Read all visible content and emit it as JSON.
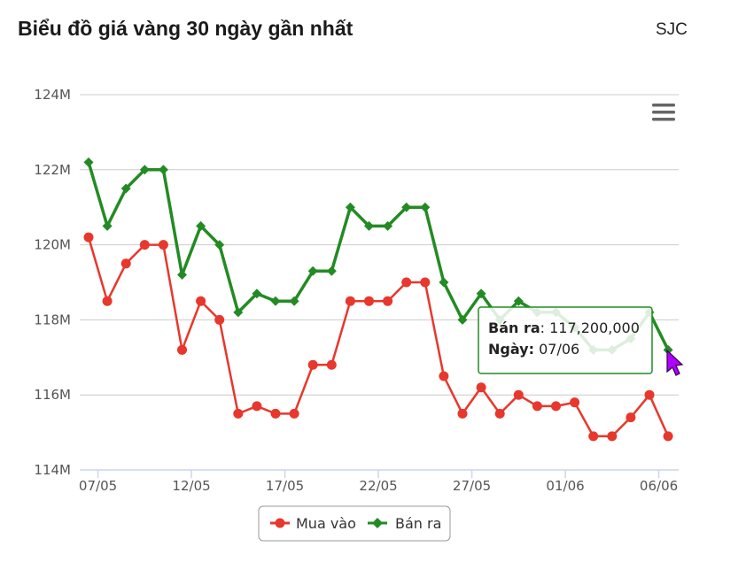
{
  "header": {
    "title": "Biểu đồ giá vàng 30 ngày gần nhất",
    "source": "SJC"
  },
  "colors": {
    "mua_vao": "#e8372c",
    "ban_ra": "#238b23",
    "grid": "#cccccc",
    "axis": "#ccd6eb",
    "cursor": "#b000ff"
  },
  "icons": {
    "menu": "hamburger-menu-icon",
    "cursor": "mouse-pointer-icon"
  },
  "tooltip": {
    "label_price": "Bán ra",
    "value_price": "117,200,000",
    "label_date": "Ngày:",
    "value_date": "07/06"
  },
  "chart_data": {
    "type": "line",
    "title": "Biểu đồ giá vàng 30 ngày gần nhất",
    "xlabel": "",
    "ylabel": "",
    "ylim": [
      114,
      124
    ],
    "y_unit": "M",
    "y_ticks": [
      "114M",
      "116M",
      "118M",
      "120M",
      "122M",
      "124M"
    ],
    "x_tick_labels": [
      "07/05",
      "12/05",
      "17/05",
      "22/05",
      "27/05",
      "01/06",
      "06/06"
    ],
    "x_tick_index": [
      0,
      5,
      10,
      15,
      20,
      25,
      30
    ],
    "grid": true,
    "legend_position": "bottom-center",
    "categories": [
      "07/05",
      "08/05",
      "09/05",
      "10/05",
      "11/05",
      "12/05",
      "13/05",
      "14/05",
      "15/05",
      "16/05",
      "17/05",
      "18/05",
      "19/05",
      "20/05",
      "21/05",
      "22/05",
      "23/05",
      "24/05",
      "25/05",
      "26/05",
      "27/05",
      "28/05",
      "29/05",
      "30/05",
      "31/05",
      "01/06",
      "02/06",
      "03/06",
      "04/06",
      "05/06",
      "06/06",
      "07/06"
    ],
    "series": [
      {
        "name": "Mua vào",
        "marker": "circle",
        "values": [
          120.2,
          118.5,
          119.5,
          120.0,
          120.0,
          117.2,
          118.5,
          118.0,
          115.5,
          115.7,
          115.5,
          115.5,
          116.8,
          116.8,
          118.5,
          118.5,
          118.5,
          119.0,
          119.0,
          116.5,
          115.5,
          116.2,
          115.5,
          116.0,
          115.7,
          115.7,
          115.8,
          114.9,
          114.9,
          115.4,
          116.0,
          114.9
        ]
      },
      {
        "name": "Bán ra",
        "marker": "diamond",
        "values": [
          122.2,
          120.5,
          121.5,
          122.0,
          122.0,
          119.2,
          120.5,
          120.0,
          118.2,
          118.7,
          118.5,
          118.5,
          119.3,
          119.3,
          121.0,
          120.5,
          120.5,
          121.0,
          121.0,
          119.0,
          118.0,
          118.7,
          118.0,
          118.5,
          118.2,
          118.2,
          117.8,
          117.2,
          117.2,
          117.5,
          118.2,
          117.2
        ]
      }
    ]
  }
}
